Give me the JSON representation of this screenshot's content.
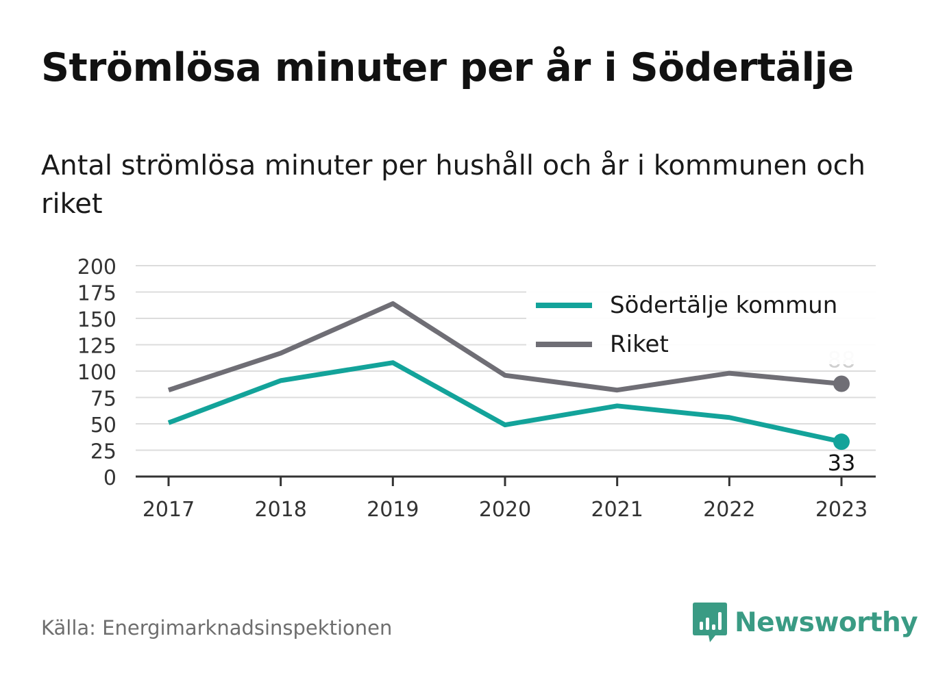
{
  "title": "Strömlösa minuter per år i Södertälje",
  "subtitle": "Antal strömlösa minuter per hushåll och år i kommunen och riket",
  "source": "Källa: Energimarknadsinspektionen",
  "brand": {
    "name": "Newsworthy",
    "icon": "newsworthy-logo-icon",
    "color": "#3a9b84"
  },
  "chart_data": {
    "type": "line",
    "x": [
      "2017",
      "2018",
      "2019",
      "2020",
      "2021",
      "2022",
      "2023"
    ],
    "ylim": [
      0,
      200
    ],
    "yticks": [
      0,
      25,
      50,
      75,
      100,
      125,
      150,
      175,
      200
    ],
    "grid": true,
    "legend_position": "top-right",
    "series": [
      {
        "name": "Södertälje kommun",
        "color": "#13a39a",
        "values": [
          51,
          91,
          108,
          49,
          67,
          56,
          33
        ],
        "end_label": "33"
      },
      {
        "name": "Riket",
        "color": "#6f6e75",
        "values": [
          82,
          117,
          164,
          96,
          82,
          98,
          88
        ],
        "end_label": "88"
      }
    ]
  }
}
